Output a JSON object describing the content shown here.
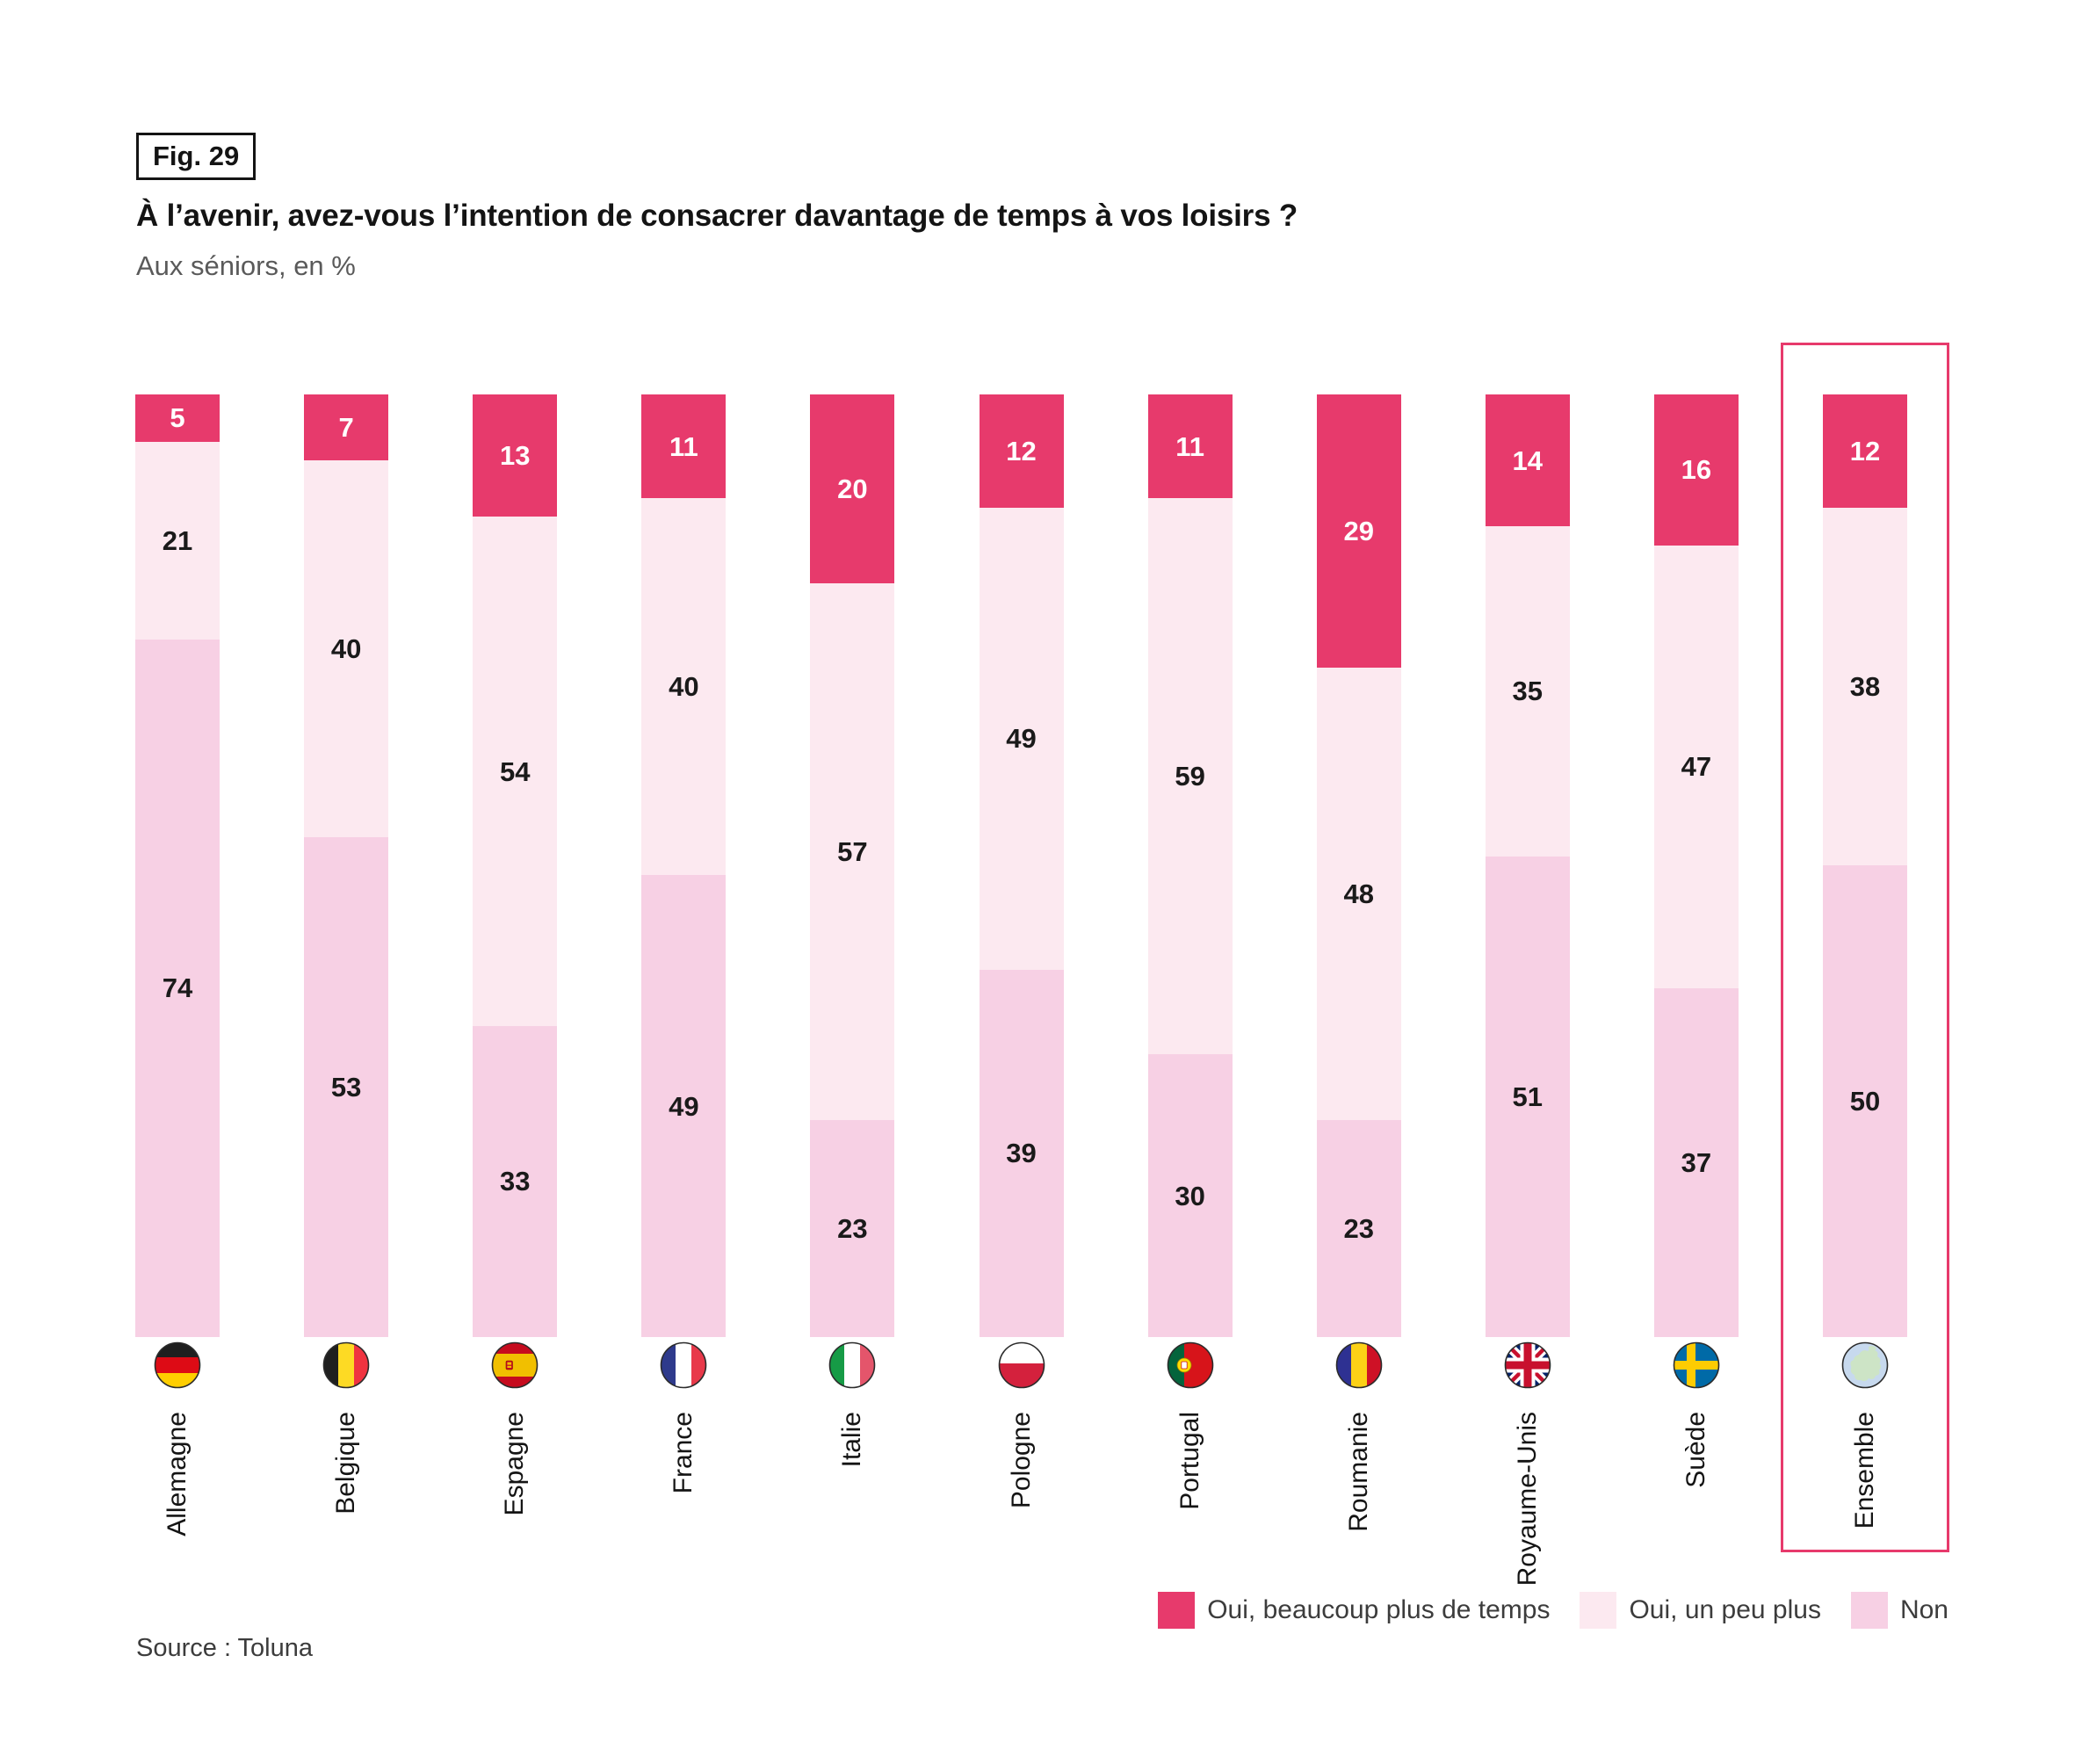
{
  "figure": {
    "tag": "Fig. 29",
    "title": "À l’avenir, avez-vous l’intention de consacrer davantage de temps à vos loisirs ?",
    "subtitle": "Aux séniors, en %",
    "source": "Source : Toluna"
  },
  "colors": {
    "oui_beaucoup": "#E73A6C",
    "oui_un_peu": "#FCE9F0",
    "non": "#F7D0E4",
    "highlight_border": "#E73A6C",
    "value_on_dark": "#FFFFFF",
    "value_on_light": "#1A1A1A"
  },
  "legend": {
    "items": [
      {
        "label": "Oui, beaucoup plus de temps",
        "color": "#E73A6C"
      },
      {
        "label": "Oui, un peu plus",
        "color": "#FCE9F0"
      },
      {
        "label": "Non",
        "color": "#F7D0E4"
      }
    ]
  },
  "chart_data": {
    "type": "bar",
    "stacked": true,
    "unit": "%",
    "title": "À l’avenir, avez-vous l’intention de consacrer davantage de temps à vos loisirs ?",
    "subtitle": "Aux séniors, en %",
    "categories": [
      "Allemagne",
      "Belgique",
      "Espagne",
      "France",
      "Italie",
      "Pologne",
      "Portugal",
      "Roumanie",
      "Royaume-Unis",
      "Suède",
      "Ensemble"
    ],
    "flag_icons": [
      "germany-flag-icon",
      "belgium-flag-icon",
      "spain-flag-icon",
      "france-flag-icon",
      "italy-flag-icon",
      "poland-flag-icon",
      "portugal-flag-icon",
      "romania-flag-icon",
      "united-kingdom-flag-icon",
      "sweden-flag-icon",
      "europe-ensemble-icon"
    ],
    "series": [
      {
        "name": "Oui, beaucoup plus de temps",
        "values": [
          5,
          7,
          13,
          11,
          20,
          12,
          11,
          29,
          14,
          16,
          12
        ]
      },
      {
        "name": "Oui, un peu plus",
        "values": [
          21,
          40,
          54,
          40,
          57,
          49,
          59,
          48,
          35,
          47,
          38
        ]
      },
      {
        "name": "Non",
        "values": [
          74,
          53,
          33,
          49,
          23,
          39,
          30,
          23,
          51,
          37,
          50
        ]
      }
    ],
    "highlighted_category": "Ensemble",
    "ylim": [
      0,
      100
    ],
    "grid": false,
    "legend_position": "bottom-right"
  }
}
